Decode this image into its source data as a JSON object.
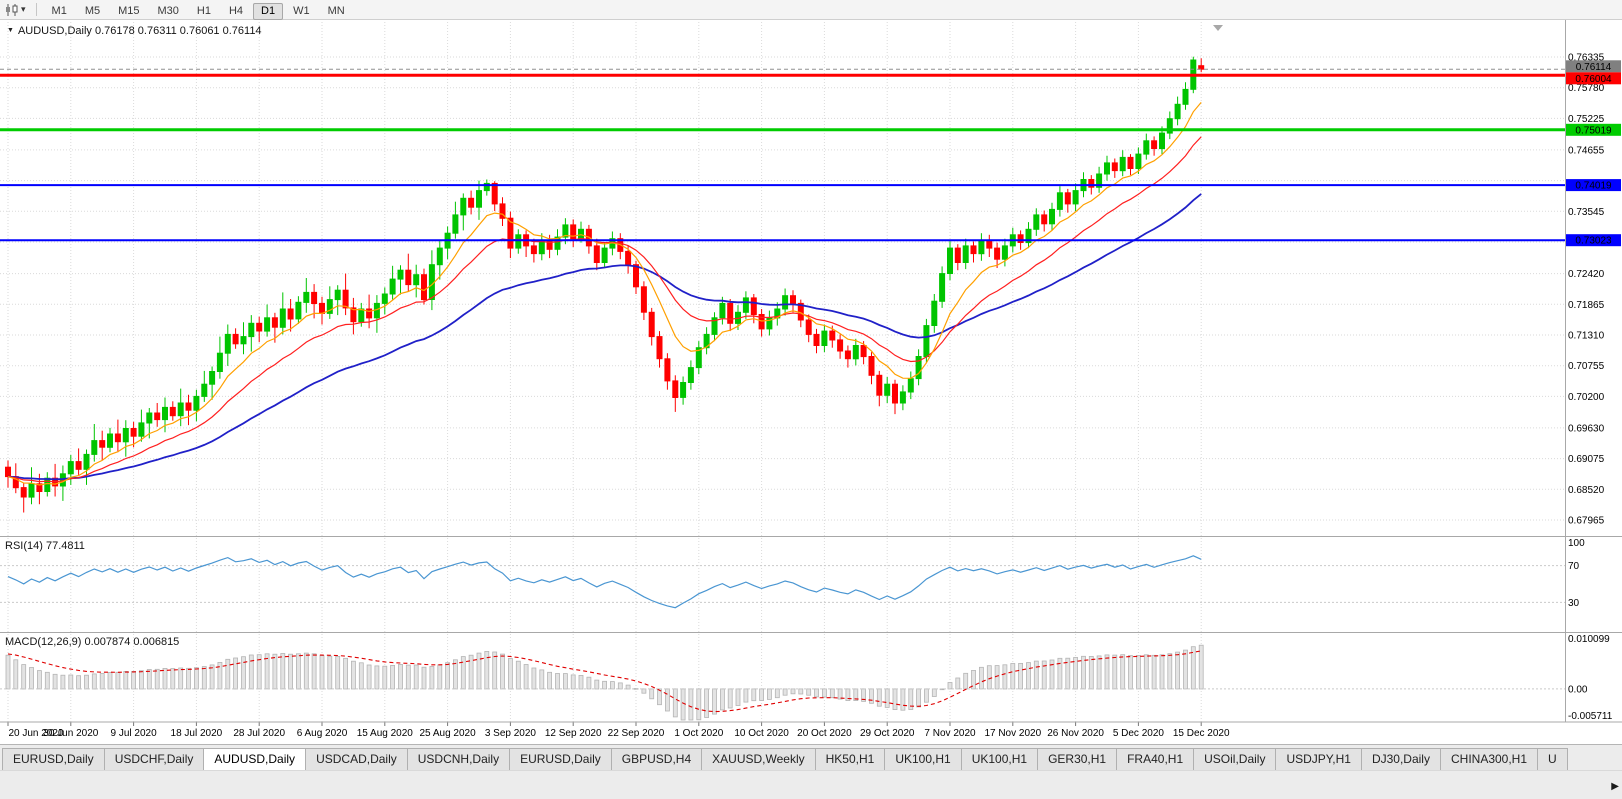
{
  "toolbar": {
    "chart_type_icon": "candlestick-chart-icon",
    "dropdown_glyph": "▾",
    "timeframes": [
      "M1",
      "M5",
      "M15",
      "M30",
      "H1",
      "H4",
      "D1",
      "W1",
      "MN"
    ],
    "active_timeframe": "D1"
  },
  "chart": {
    "collapse_arrow": "▼",
    "symbol": "AUDUSD,Daily",
    "ohlc": "0.76178 0.76311 0.76061 0.76114"
  },
  "rsi_panel": {
    "title": "RSI(14)",
    "value": "77.4811"
  },
  "macd_panel": {
    "title": "MACD(12,26,9)",
    "values": "0.007874 0.006815"
  },
  "tabs": {
    "scroll_right_glyph": "▶",
    "items": [
      {
        "label": "EURUSD,Daily"
      },
      {
        "label": "USDCHF,Daily"
      },
      {
        "label": "AUDUSD,Daily",
        "active": true
      },
      {
        "label": "USDCAD,Daily"
      },
      {
        "label": "USDCNH,Daily"
      },
      {
        "label": "EURUSD,Daily"
      },
      {
        "label": "GBPUSD,H4"
      },
      {
        "label": "XAUUSD,Weekly"
      },
      {
        "label": "HK50,H1"
      },
      {
        "label": "UK100,H1"
      },
      {
        "label": "UK100,H1"
      },
      {
        "label": "GER30,H1"
      },
      {
        "label": "FRA40,H1"
      },
      {
        "label": "USOil,Daily"
      },
      {
        "label": "USDJPY,H1"
      },
      {
        "label": "DJ30,Daily"
      },
      {
        "label": "CHINA300,H1"
      },
      {
        "label": "U"
      }
    ]
  },
  "chart_data": {
    "type": "candlestick",
    "symbol": "AUDUSD",
    "timeframe": "Daily",
    "last_ohlc": {
      "open": 0.76178,
      "high": 0.76311,
      "low": 0.76061,
      "close": 0.76114
    },
    "y_axis": {
      "top_price": 0.76335,
      "bottom_price": 0.67965,
      "ticks": [
        {
          "label": "0.76335",
          "price": 0.76335
        },
        {
          "label": "0.75780",
          "price": 0.7578
        },
        {
          "label": "0.75225",
          "price": 0.75225
        },
        {
          "label": "0.74655",
          "price": 0.74655
        },
        {
          "label": "0.74100",
          "price": 0.741,
          "hidden": true
        },
        {
          "label": "0.73545",
          "price": 0.73545
        },
        {
          "label": "0.72990",
          "price": 0.7299,
          "hidden": true
        },
        {
          "label": "0.72420",
          "price": 0.7242
        },
        {
          "label": "0.71865",
          "price": 0.71865
        },
        {
          "label": "0.71310",
          "price": 0.7131
        },
        {
          "label": "0.70755",
          "price": 0.70755
        },
        {
          "label": "0.70200",
          "price": 0.702
        },
        {
          "label": "0.69630",
          "price": 0.6963
        },
        {
          "label": "0.69075",
          "price": 0.69075
        },
        {
          "label": "0.68520",
          "price": 0.6852
        },
        {
          "label": "0.67965",
          "price": 0.67965
        }
      ]
    },
    "x_axis": {
      "dates": [
        {
          "label": "20 Jun 2020",
          "index": 0
        },
        {
          "label": "30 Jun 2020",
          "index": 8
        },
        {
          "label": "9 Jul 2020",
          "index": 16
        },
        {
          "label": "18 Jul 2020",
          "index": 24
        },
        {
          "label": "28 Jul 2020",
          "index": 32
        },
        {
          "label": "6 Aug 2020",
          "index": 40
        },
        {
          "label": "15 Aug 2020",
          "index": 48
        },
        {
          "label": "25 Aug 2020",
          "index": 56
        },
        {
          "label": "3 Sep 2020",
          "index": 64
        },
        {
          "label": "12 Sep 2020",
          "index": 72
        },
        {
          "label": "22 Sep 2020",
          "index": 80
        },
        {
          "label": "1 Oct 2020",
          "index": 88
        },
        {
          "label": "10 Oct 2020",
          "index": 96
        },
        {
          "label": "20 Oct 2020",
          "index": 104
        },
        {
          "label": "29 Oct 2020",
          "index": 112
        },
        {
          "label": "7 Nov 2020",
          "index": 120
        },
        {
          "label": "17 Nov 2020",
          "index": 128
        },
        {
          "label": "26 Nov 2020",
          "index": 136
        },
        {
          "label": "5 Dec 2020",
          "index": 144
        },
        {
          "label": "15 Dec 2020",
          "index": 152
        }
      ]
    },
    "candles": [
      [
        0.6892,
        0.6904,
        0.6855,
        0.6875
      ],
      [
        0.6875,
        0.6899,
        0.6845,
        0.6855
      ],
      [
        0.6855,
        0.6864,
        0.681,
        0.6838
      ],
      [
        0.6838,
        0.6892,
        0.6825,
        0.6862
      ],
      [
        0.6862,
        0.688,
        0.6825,
        0.6848
      ],
      [
        0.6848,
        0.6883,
        0.6839,
        0.6872
      ],
      [
        0.6872,
        0.6898,
        0.6839,
        0.6858
      ],
      [
        0.6858,
        0.6895,
        0.6831,
        0.688
      ],
      [
        0.688,
        0.6914,
        0.686,
        0.6902
      ],
      [
        0.6902,
        0.6926,
        0.6878,
        0.6888
      ],
      [
        0.6888,
        0.6924,
        0.686,
        0.6915
      ],
      [
        0.6915,
        0.697,
        0.6902,
        0.694
      ],
      [
        0.694,
        0.6958,
        0.6905,
        0.6928
      ],
      [
        0.6928,
        0.6963,
        0.6919,
        0.6952
      ],
      [
        0.6952,
        0.6978,
        0.6919,
        0.6938
      ],
      [
        0.6938,
        0.6977,
        0.6911,
        0.6962
      ],
      [
        0.6962,
        0.6974,
        0.6928,
        0.6948
      ],
      [
        0.6948,
        0.6996,
        0.6938,
        0.6972
      ],
      [
        0.6972,
        0.6999,
        0.6944,
        0.699
      ],
      [
        0.699,
        0.7008,
        0.6965,
        0.6978
      ],
      [
        0.6978,
        0.7018,
        0.6955,
        0.7
      ],
      [
        0.7,
        0.7011,
        0.6976,
        0.6985
      ],
      [
        0.6985,
        0.7034,
        0.6966,
        0.7008
      ],
      [
        0.7008,
        0.7023,
        0.6968,
        0.6995
      ],
      [
        0.6995,
        0.7032,
        0.6975,
        0.702
      ],
      [
        0.702,
        0.7066,
        0.701,
        0.7042
      ],
      [
        0.7042,
        0.7074,
        0.7014,
        0.7065
      ],
      [
        0.7065,
        0.7128,
        0.7052,
        0.7098
      ],
      [
        0.7098,
        0.715,
        0.7075,
        0.7132
      ],
      [
        0.7132,
        0.7143,
        0.7106,
        0.7115
      ],
      [
        0.7115,
        0.7154,
        0.7096,
        0.7128
      ],
      [
        0.7128,
        0.7167,
        0.7101,
        0.7152
      ],
      [
        0.7152,
        0.7164,
        0.7118,
        0.7138
      ],
      [
        0.7138,
        0.7186,
        0.7128,
        0.7162
      ],
      [
        0.7162,
        0.7171,
        0.7117,
        0.7145
      ],
      [
        0.7145,
        0.7208,
        0.7132,
        0.7178
      ],
      [
        0.7178,
        0.7196,
        0.7137,
        0.716
      ],
      [
        0.716,
        0.7201,
        0.7151,
        0.719
      ],
      [
        0.719,
        0.7234,
        0.7171,
        0.7208
      ],
      [
        0.7208,
        0.7223,
        0.7161,
        0.7188
      ],
      [
        0.7188,
        0.72,
        0.715,
        0.717
      ],
      [
        0.717,
        0.7219,
        0.716,
        0.7195
      ],
      [
        0.7195,
        0.7221,
        0.7167,
        0.7212
      ],
      [
        0.7212,
        0.7242,
        0.7167,
        0.718
      ],
      [
        0.718,
        0.7198,
        0.7132,
        0.7155
      ],
      [
        0.7155,
        0.7189,
        0.7146,
        0.7178
      ],
      [
        0.7178,
        0.7204,
        0.7143,
        0.7162
      ],
      [
        0.7162,
        0.7203,
        0.7135,
        0.7188
      ],
      [
        0.7188,
        0.7217,
        0.7168,
        0.7205
      ],
      [
        0.7205,
        0.7256,
        0.7195,
        0.7232
      ],
      [
        0.7232,
        0.7257,
        0.7204,
        0.7248
      ],
      [
        0.7248,
        0.7278,
        0.7209,
        0.7222
      ],
      [
        0.7222,
        0.7258,
        0.7199,
        0.724
      ],
      [
        0.724,
        0.7251,
        0.7186,
        0.7195
      ],
      [
        0.7195,
        0.7284,
        0.7176,
        0.7258
      ],
      [
        0.7258,
        0.7303,
        0.7231,
        0.7288
      ],
      [
        0.7288,
        0.7327,
        0.7268,
        0.7315
      ],
      [
        0.7315,
        0.7372,
        0.7305,
        0.7348
      ],
      [
        0.7348,
        0.7387,
        0.732,
        0.7378
      ],
      [
        0.7378,
        0.7392,
        0.7349,
        0.7362
      ],
      [
        0.7362,
        0.741,
        0.7339,
        0.7392
      ],
      [
        0.7392,
        0.7412,
        0.7383,
        0.7405
      ],
      [
        0.7405,
        0.7409,
        0.7355,
        0.7368
      ],
      [
        0.7368,
        0.738,
        0.7328,
        0.7342
      ],
      [
        0.7342,
        0.7354,
        0.727,
        0.7288
      ],
      [
        0.7288,
        0.7322,
        0.7278,
        0.7312
      ],
      [
        0.7312,
        0.732,
        0.7272,
        0.7292
      ],
      [
        0.7292,
        0.7305,
        0.7262,
        0.7278
      ],
      [
        0.7278,
        0.7315,
        0.7266,
        0.7302
      ],
      [
        0.7302,
        0.7312,
        0.727,
        0.7286
      ],
      [
        0.7286,
        0.7322,
        0.7275,
        0.7308
      ],
      [
        0.7308,
        0.7342,
        0.7295,
        0.733
      ],
      [
        0.733,
        0.734,
        0.729,
        0.7305
      ],
      [
        0.7305,
        0.7336,
        0.7298,
        0.7322
      ],
      [
        0.7322,
        0.733,
        0.7278,
        0.7292
      ],
      [
        0.7292,
        0.7305,
        0.7248,
        0.7262
      ],
      [
        0.7262,
        0.7299,
        0.7252,
        0.7288
      ],
      [
        0.7288,
        0.7318,
        0.7275,
        0.7305
      ],
      [
        0.7305,
        0.7315,
        0.7268,
        0.7282
      ],
      [
        0.7282,
        0.7292,
        0.7242,
        0.7258
      ],
      [
        0.7258,
        0.7265,
        0.7205,
        0.7218
      ],
      [
        0.7218,
        0.7228,
        0.7158,
        0.7172
      ],
      [
        0.7172,
        0.718,
        0.7112,
        0.7128
      ],
      [
        0.7128,
        0.7138,
        0.7072,
        0.7088
      ],
      [
        0.7088,
        0.7098,
        0.7032,
        0.7048
      ],
      [
        0.7048,
        0.7058,
        0.6992,
        0.7018
      ],
      [
        0.7018,
        0.7056,
        0.7005,
        0.7045
      ],
      [
        0.7045,
        0.7085,
        0.7032,
        0.7072
      ],
      [
        0.7072,
        0.712,
        0.706,
        0.7108
      ],
      [
        0.7108,
        0.7145,
        0.7096,
        0.7132
      ],
      [
        0.7132,
        0.7172,
        0.712,
        0.7162
      ],
      [
        0.7162,
        0.72,
        0.715,
        0.7188
      ],
      [
        0.7188,
        0.7196,
        0.7138,
        0.7152
      ],
      [
        0.7152,
        0.7185,
        0.714,
        0.7172
      ],
      [
        0.7172,
        0.721,
        0.716,
        0.7198
      ],
      [
        0.7198,
        0.7205,
        0.7152,
        0.7168
      ],
      [
        0.7168,
        0.7178,
        0.7128,
        0.7142
      ],
      [
        0.7142,
        0.7175,
        0.713,
        0.7162
      ],
      [
        0.7162,
        0.719,
        0.7148,
        0.7178
      ],
      [
        0.7178,
        0.7215,
        0.7166,
        0.7202
      ],
      [
        0.7202,
        0.7212,
        0.7172,
        0.7188
      ],
      [
        0.7188,
        0.7195,
        0.7145,
        0.7158
      ],
      [
        0.7158,
        0.7168,
        0.7118,
        0.7132
      ],
      [
        0.7132,
        0.7142,
        0.7098,
        0.7112
      ],
      [
        0.7112,
        0.715,
        0.71,
        0.7138
      ],
      [
        0.7138,
        0.7148,
        0.7108,
        0.7122
      ],
      [
        0.7122,
        0.7132,
        0.7088,
        0.7102
      ],
      [
        0.7102,
        0.7112,
        0.7072,
        0.7088
      ],
      [
        0.7088,
        0.7124,
        0.7076,
        0.7112
      ],
      [
        0.7112,
        0.712,
        0.7078,
        0.7092
      ],
      [
        0.7092,
        0.71,
        0.7042,
        0.7058
      ],
      [
        0.7058,
        0.7066,
        0.7002,
        0.7022
      ],
      [
        0.7022,
        0.7055,
        0.7008,
        0.7042
      ],
      [
        0.7042,
        0.705,
        0.6988,
        0.7008
      ],
      [
        0.7008,
        0.704,
        0.6995,
        0.7028
      ],
      [
        0.7028,
        0.7065,
        0.7015,
        0.7052
      ],
      [
        0.7052,
        0.7105,
        0.704,
        0.7092
      ],
      [
        0.7092,
        0.716,
        0.708,
        0.7148
      ],
      [
        0.7148,
        0.7205,
        0.7135,
        0.7192
      ],
      [
        0.7192,
        0.7255,
        0.718,
        0.7242
      ],
      [
        0.7242,
        0.7302,
        0.723,
        0.7288
      ],
      [
        0.7288,
        0.7295,
        0.7248,
        0.7262
      ],
      [
        0.7262,
        0.7305,
        0.725,
        0.7292
      ],
      [
        0.7292,
        0.73,
        0.7262,
        0.7278
      ],
      [
        0.7278,
        0.7315,
        0.7265,
        0.7302
      ],
      [
        0.7302,
        0.7312,
        0.7272,
        0.7288
      ],
      [
        0.7288,
        0.7298,
        0.7252,
        0.7268
      ],
      [
        0.7268,
        0.7305,
        0.7255,
        0.7292
      ],
      [
        0.7292,
        0.7325,
        0.728,
        0.7312
      ],
      [
        0.7312,
        0.732,
        0.7285,
        0.7298
      ],
      [
        0.7298,
        0.7335,
        0.7288,
        0.7322
      ],
      [
        0.7322,
        0.736,
        0.731,
        0.7348
      ],
      [
        0.7348,
        0.7356,
        0.7318,
        0.7332
      ],
      [
        0.7332,
        0.737,
        0.732,
        0.7358
      ],
      [
        0.7358,
        0.74,
        0.7345,
        0.7388
      ],
      [
        0.7388,
        0.7395,
        0.7352,
        0.7368
      ],
      [
        0.7368,
        0.7405,
        0.7355,
        0.7392
      ],
      [
        0.7392,
        0.7425,
        0.738,
        0.7412
      ],
      [
        0.7412,
        0.742,
        0.7385,
        0.7398
      ],
      [
        0.7398,
        0.7435,
        0.7388,
        0.7422
      ],
      [
        0.7422,
        0.7455,
        0.741,
        0.7442
      ],
      [
        0.7442,
        0.745,
        0.7415,
        0.7428
      ],
      [
        0.7428,
        0.7465,
        0.7418,
        0.7452
      ],
      [
        0.7452,
        0.7458,
        0.742,
        0.7432
      ],
      [
        0.7432,
        0.747,
        0.7422,
        0.7458
      ],
      [
        0.7458,
        0.7495,
        0.7448,
        0.7482
      ],
      [
        0.7482,
        0.749,
        0.7455,
        0.7468
      ],
      [
        0.7468,
        0.7508,
        0.7458,
        0.7496
      ],
      [
        0.7496,
        0.7535,
        0.7485,
        0.7522
      ],
      [
        0.7522,
        0.7562,
        0.751,
        0.7548
      ],
      [
        0.7548,
        0.7588,
        0.7538,
        0.7575
      ],
      [
        0.7575,
        0.7634,
        0.7568,
        0.7628
      ],
      [
        0.76178,
        0.76311,
        0.76061,
        0.76114
      ]
    ],
    "moving_averages": [
      {
        "name": "ma-fast",
        "period": 8,
        "color": "#FFA000"
      },
      {
        "name": "ma-mid",
        "period": 17,
        "color": "#FF2020"
      },
      {
        "name": "ma-slow",
        "period": 40,
        "color": "#2020C8"
      }
    ],
    "horizontal_lines": [
      {
        "price": 0.76004,
        "label": "0.76004",
        "color": "#FF0000",
        "width": 3
      },
      {
        "price": 0.75019,
        "label": "0.75019",
        "color": "#00CC00",
        "width": 3
      },
      {
        "price": 0.74019,
        "label": "0.74019",
        "color": "#0000FF",
        "width": 2
      },
      {
        "price": 0.73023,
        "label": "0.73023",
        "color": "#0000FF",
        "width": 2
      }
    ],
    "current_price": {
      "price": 0.76114,
      "label": "0.76114",
      "color": "#808080"
    },
    "indicators": {
      "rsi": {
        "period": 14,
        "value": "77.4811",
        "color": "#4A96D2",
        "levels": [
          {
            "label": "100",
            "value": 100
          },
          {
            "label": "70",
            "value": 70
          },
          {
            "label": "30",
            "value": 30
          }
        ]
      },
      "macd": {
        "params": "12,26,9",
        "main": "0.007874",
        "signal": "0.006815",
        "histogram_color": "#e3e3e3",
        "signal_color": "#E00000",
        "axis_max": {
          "label": "0.010099",
          "value": 0.010099
        },
        "axis_zero": {
          "label": "0.00",
          "value": 0
        },
        "axis_min": {
          "label": "-0.005711",
          "value": -0.005711
        }
      }
    },
    "colors": {
      "up": "#00C400",
      "down": "#FF0000",
      "grid": "#dadada",
      "axis_text": "#000000"
    }
  }
}
